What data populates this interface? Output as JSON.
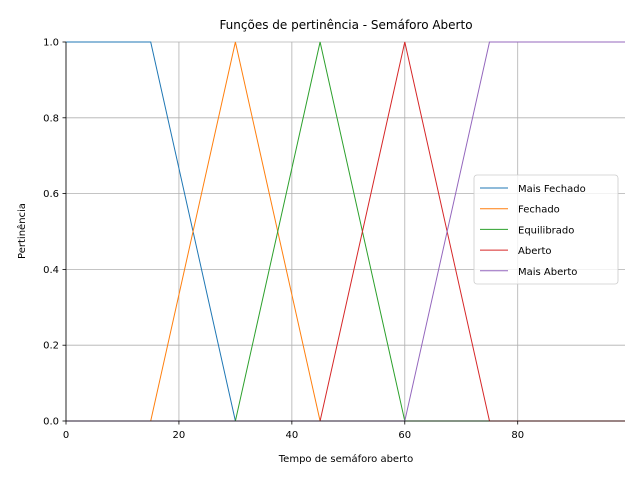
{
  "chart_data": {
    "type": "line",
    "title": "Funções de pertinência - Semáforo Aberto",
    "xlabel": "Tempo de semáforo aberto",
    "ylabel": "Pertinência",
    "xlim": [
      0,
      99
    ],
    "ylim": [
      0,
      1.0
    ],
    "xticks": [
      0,
      20,
      40,
      60,
      80
    ],
    "xtick_labels": [
      "0",
      "20",
      "40",
      "60",
      "80"
    ],
    "yticks": [
      0.0,
      0.2,
      0.4,
      0.6,
      0.8,
      1.0
    ],
    "ytick_labels": [
      "0.0",
      "0.2",
      "0.4",
      "0.6",
      "0.8",
      "1.0"
    ],
    "grid": true,
    "legend_position": "center-right",
    "series": [
      {
        "name": "Mais Fechado",
        "color": "#1f77b4",
        "x": [
          0,
          15,
          30,
          99
        ],
        "y": [
          1,
          1,
          0,
          0
        ]
      },
      {
        "name": "Fechado",
        "color": "#ff7f0e",
        "x": [
          0,
          15,
          30,
          45,
          99
        ],
        "y": [
          0,
          0,
          1,
          0,
          0
        ]
      },
      {
        "name": "Equilibrado",
        "color": "#2ca02c",
        "x": [
          0,
          30,
          45,
          60,
          99
        ],
        "y": [
          0,
          0,
          1,
          0,
          0
        ]
      },
      {
        "name": "Aberto",
        "color": "#d62728",
        "x": [
          0,
          45,
          60,
          75,
          99
        ],
        "y": [
          0,
          0,
          1,
          0,
          0
        ]
      },
      {
        "name": "Mais Aberto",
        "color": "#9467bd",
        "x": [
          0,
          60,
          75,
          99
        ],
        "y": [
          0,
          0,
          1,
          1
        ]
      }
    ]
  }
}
